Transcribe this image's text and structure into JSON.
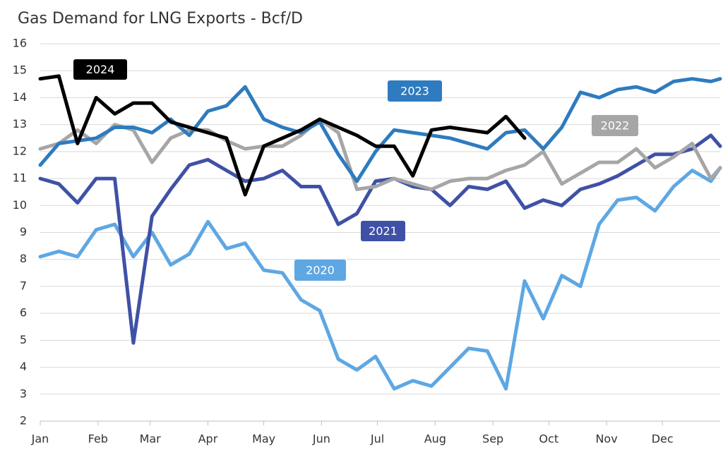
{
  "chart_data": {
    "type": "line",
    "title": "Gas Demand for LNG Exports - Bcf/D",
    "x": [
      1,
      11,
      21,
      31,
      41,
      51,
      61,
      71,
      81,
      91,
      101,
      111,
      121,
      131,
      141,
      151,
      161,
      171,
      181,
      191,
      201,
      211,
      221,
      231,
      241,
      251,
      261,
      271,
      281,
      291,
      301,
      311,
      321,
      331,
      341,
      351,
      361,
      366
    ],
    "xlim": [
      1,
      366
    ],
    "xticks": [
      {
        "value": 1,
        "label": "Jan"
      },
      {
        "value": 32,
        "label": "Feb"
      },
      {
        "value": 60,
        "label": "Mar"
      },
      {
        "value": 91,
        "label": "Apr"
      },
      {
        "value": 121,
        "label": "May"
      },
      {
        "value": 152,
        "label": "Jun"
      },
      {
        "value": 182,
        "label": "Jul"
      },
      {
        "value": 213,
        "label": "Aug"
      },
      {
        "value": 244,
        "label": "Sep"
      },
      {
        "value": 274,
        "label": "Oct"
      },
      {
        "value": 305,
        "label": "Nov"
      },
      {
        "value": 335,
        "label": "Dec"
      }
    ],
    "ylim": [
      2,
      16
    ],
    "yticks": [
      2,
      3,
      4,
      5,
      6,
      7,
      8,
      9,
      10,
      11,
      12,
      13,
      14,
      15,
      16
    ],
    "grid": true,
    "series": [
      {
        "name": "2020",
        "color": "#5ea7e3",
        "values": [
          8.1,
          8.3,
          8.1,
          9.1,
          9.3,
          8.1,
          9.0,
          7.8,
          8.2,
          9.4,
          8.4,
          8.6,
          7.6,
          7.5,
          6.5,
          6.1,
          4.3,
          3.9,
          4.4,
          3.2,
          3.5,
          3.3,
          4.0,
          4.7,
          4.6,
          3.2,
          7.2,
          5.8,
          7.4,
          7.0,
          9.3,
          10.2,
          10.3,
          9.8,
          10.7,
          11.3,
          10.9,
          11.4
        ]
      },
      {
        "name": "2021",
        "color": "#3f51a6",
        "values": [
          11.0,
          10.8,
          10.1,
          11.0,
          11.0,
          4.9,
          9.6,
          10.6,
          11.5,
          11.7,
          11.3,
          10.9,
          11.0,
          11.3,
          10.7,
          10.7,
          9.3,
          9.7,
          10.9,
          11.0,
          10.7,
          10.6,
          10.0,
          10.7,
          10.6,
          10.9,
          9.9,
          10.2,
          10.0,
          10.6,
          10.8,
          11.1,
          11.5,
          11.9,
          11.9,
          12.1,
          12.6,
          12.2
        ]
      },
      {
        "name": "2022",
        "color": "#a6a6a6",
        "values": [
          12.1,
          12.3,
          12.8,
          12.3,
          13.0,
          12.8,
          11.6,
          12.5,
          12.8,
          12.8,
          12.4,
          12.1,
          12.2,
          12.2,
          12.6,
          13.2,
          12.7,
          10.6,
          10.7,
          11.0,
          10.8,
          10.6,
          10.9,
          11.0,
          11.0,
          11.3,
          11.5,
          12.0,
          10.8,
          11.2,
          11.6,
          11.6,
          12.1,
          11.4,
          11.8,
          12.3,
          11.0,
          11.4
        ]
      },
      {
        "name": "2023",
        "color": "#2e7bbf",
        "values": [
          11.5,
          12.3,
          12.4,
          12.5,
          12.9,
          12.9,
          12.7,
          13.2,
          12.6,
          13.5,
          13.7,
          14.4,
          13.2,
          12.9,
          12.7,
          13.1,
          11.9,
          10.9,
          12.0,
          12.8,
          12.7,
          12.6,
          12.5,
          12.3,
          12.1,
          12.7,
          12.8,
          12.1,
          12.9,
          14.2,
          14.0,
          14.3,
          14.4,
          14.2,
          14.6,
          14.7,
          14.6,
          14.7
        ]
      },
      {
        "name": "2024",
        "color": "#000000",
        "values": [
          14.7,
          14.8,
          12.3,
          14.0,
          13.4,
          13.8,
          13.8,
          13.1,
          12.9,
          12.7,
          12.5,
          10.4,
          12.2,
          12.5,
          12.8,
          13.2,
          12.9,
          12.6,
          12.2,
          12.2,
          11.1,
          12.8,
          12.9,
          12.8,
          12.7,
          13.3,
          12.5,
          null,
          null,
          null,
          null,
          null,
          null,
          null,
          null,
          null,
          null,
          null
        ]
      }
    ]
  }
}
